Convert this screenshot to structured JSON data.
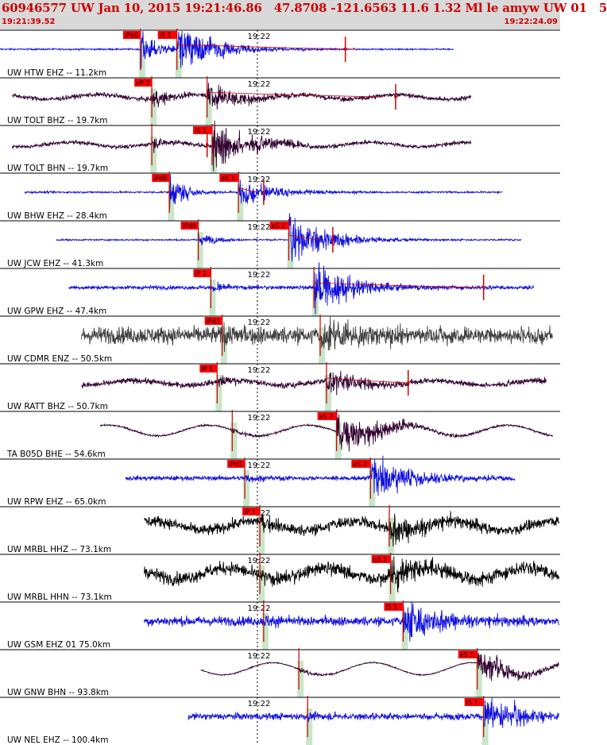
{
  "header": {
    "title": "60946577 UW Jan 10, 2015 19:21:46.86   47.8708 -121.6563 11.6 1.32 Ml le amyw UW 01   5",
    "time_start": "19:21:39.52",
    "time_end": "19:22:24.09"
  },
  "colors": {
    "header_bg": "#d9d9d9",
    "title_text": "#cc0000",
    "pick_box": "#ff0000",
    "pick_window": "#c8e6c8",
    "trace_blue": "#1010e0",
    "trace_purple": "#300030",
    "trace_gray": "#404040",
    "trace_black": "#000000"
  },
  "chart_data": {
    "type": "line",
    "title": "60946577 UW Jan 10, 2015 19:21:46.86   47.8708 -121.6563 11.6 1.32 Ml le amyw UW 01   5",
    "x_range": [
      "19:21:39.52",
      "19:22:24.09"
    ],
    "x_tick_label": "19:22",
    "origin_time": "19:21:46.86",
    "series": [
      {
        "name": "UW HTW EHZ -- 11.2km",
        "color": "blue",
        "start": "19:21:39.52",
        "end": "19:22:15.6",
        "p_label": "iPd0",
        "p_arrival": "19:21:50.7",
        "s_label": "iS 1",
        "s_arrival": "19:21:53.6",
        "amp_time": "19:22:07.0",
        "coda_end": "19:22:08.0",
        "noise": 0.04,
        "drift": 0,
        "p_amp": 0.9,
        "s_amp": 1.0
      },
      {
        "name": "UW TOLT BHZ -- 19.7km",
        "color": "purple",
        "start": "19:21:40.5",
        "end": "19:22:17.0",
        "p_label": "eP 2",
        "p_arrival": "19:21:51.6",
        "s_label": "",
        "s_arrival": "19:21:56.0",
        "amp_time": "19:22:11.0",
        "coda_end": "19:22:10.0",
        "noise": 0.12,
        "drift": 0.15,
        "p_amp": 0.6,
        "s_amp": 0.6
      },
      {
        "name": "UW TOLT BHN -- 19.7km",
        "color": "purple",
        "start": "19:21:40.5",
        "end": "19:22:17.0",
        "p_label": "",
        "p_arrival": "19:21:51.6",
        "s_label": "iS 1",
        "s_arrival": "19:21:56.4",
        "amp_time": "19:21:56.0",
        "coda_end": "",
        "noise": 0.1,
        "drift": 0.15,
        "p_amp": 0.4,
        "s_amp": 1.0
      },
      {
        "name": "UW BHW EHZ -- 28.4km",
        "color": "blue",
        "start": "19:21:41.5",
        "end": "19:22:19.5",
        "p_label": "iPd0",
        "p_arrival": "19:21:53.0",
        "s_label": "eS 2",
        "s_arrival": "19:21:58.5",
        "amp_time": "19:22:00.5",
        "coda_end": "19:22:00.0",
        "noise": 0.05,
        "drift": 0,
        "p_amp": 0.9,
        "s_amp": 0.5
      },
      {
        "name": "UW JCW EHZ -- 41.3km",
        "color": "blue",
        "start": "19:21:44.0",
        "end": "19:22:21.0",
        "p_label": "iPd0",
        "p_arrival": "19:21:55.3",
        "s_label": "eS 2",
        "s_arrival": "19:22:02.5",
        "amp_time": "19:22:06.0",
        "coda_end": "19:22:05.0",
        "noise": 0.04,
        "drift": 0,
        "p_amp": 0.4,
        "s_amp": 1.0
      },
      {
        "name": "UW GPW EHZ -- 47.4km",
        "color": "blue",
        "start": "19:21:45.0",
        "end": "19:22:22.0",
        "p_label": "iP 1",
        "p_arrival": "19:21:56.3",
        "s_label": "",
        "s_arrival": "19:22:04.5",
        "amp_time": "19:22:18.0",
        "coda_end": "19:22:18.0",
        "noise": 0.1,
        "drift": 0,
        "p_amp": 0.4,
        "s_amp": 1.0
      },
      {
        "name": "UW CDMR ENZ -- 50.5km",
        "color": "gray",
        "start": "19:21:46.0",
        "end": "19:22:23.5",
        "p_label": "iPd1",
        "p_arrival": "19:21:57.2",
        "s_label": "",
        "s_arrival": "19:22:05.0",
        "amp_time": "",
        "coda_end": "",
        "noise": 0.45,
        "drift": 0,
        "p_amp": 0.7,
        "s_amp": 0.7
      },
      {
        "name": "UW RATT BHZ -- 50.7km",
        "color": "purple",
        "start": "19:21:46.0",
        "end": "19:22:23.0",
        "p_label": "iP 1",
        "p_arrival": "19:21:56.8",
        "s_label": "",
        "s_arrival": "19:22:05.5",
        "amp_time": "19:22:12.0",
        "coda_end": "19:22:12.0",
        "noise": 0.15,
        "drift": 0.15,
        "p_amp": 0.4,
        "s_amp": 0.55
      },
      {
        "name": "TA B05D BHE -- 54.6km",
        "color": "purple",
        "start": "19:21:47.5",
        "end": "19:22:23.5",
        "p_label": "",
        "p_arrival": "19:21:58.0",
        "s_label": "eS 2",
        "s_arrival": "19:22:06.3",
        "amp_time": "",
        "coda_end": "",
        "noise": 0.05,
        "drift": 0.35,
        "p_amp": 0.2,
        "s_amp": 0.9
      },
      {
        "name": "UW RPW EHZ -- 65.0km",
        "color": "blue",
        "start": "19:21:49.5",
        "end": "19:22:20.5",
        "p_label": "iPd1",
        "p_arrival": "19:21:59.0",
        "s_label": "eS 2",
        "s_arrival": "19:22:09.0",
        "amp_time": "",
        "coda_end": "",
        "noise": 0.12,
        "drift": 0,
        "p_amp": 0.3,
        "s_amp": 0.9
      },
      {
        "name": "UW MRBL HHZ -- 73.1km",
        "color": "black",
        "start": "19:21:51.0",
        "end": "19:22:24.0",
        "p_label": "iP 1",
        "p_arrival": "19:22:00.2",
        "s_label": "",
        "s_arrival": "19:22:10.5",
        "amp_time": "",
        "coda_end": "",
        "noise": 0.3,
        "drift": 0.3,
        "p_amp": 0.5,
        "s_amp": 0.6
      },
      {
        "name": "UW MRBL HHN -- 73.1km",
        "color": "black",
        "start": "19:21:51.0",
        "end": "19:22:24.0",
        "p_label": "",
        "p_arrival": "19:22:00.2",
        "s_label": "eS 2",
        "s_arrival": "19:22:10.6",
        "amp_time": "",
        "coda_end": "",
        "noise": 0.35,
        "drift": 0.35,
        "p_amp": 0.4,
        "s_amp": 0.7
      },
      {
        "name": "UW GSM EHZ 01 75.0km",
        "color": "blue",
        "start": "19:21:51.0",
        "end": "19:22:24.0",
        "p_label": "",
        "p_arrival": "19:22:00.5",
        "s_label": "iS 1",
        "s_arrival": "19:22:11.6",
        "amp_time": "",
        "coda_end": "",
        "noise": 0.25,
        "drift": 0,
        "p_amp": 0.3,
        "s_amp": 0.9
      },
      {
        "name": "UW GNW BHN -- 93.8km",
        "color": "purple",
        "start": "19:21:55.5",
        "end": "19:22:24.0",
        "p_label": "",
        "p_arrival": "19:22:03.3",
        "s_label": "eS 1",
        "s_arrival": "19:22:17.5",
        "amp_time": "",
        "coda_end": "",
        "noise": 0.03,
        "drift": 0.4,
        "p_amp": 0.2,
        "s_amp": 0.6
      },
      {
        "name": "UW NEL EHZ -- 100.4km",
        "color": "blue",
        "start": "19:21:54.5",
        "end": "19:22:24.0",
        "p_label": "",
        "p_arrival": "19:22:04.0",
        "s_label": "iS 1",
        "s_arrival": "19:22:18.0",
        "amp_time": "",
        "coda_end": "",
        "noise": 0.18,
        "drift": 0,
        "p_amp": 0.2,
        "s_amp": 0.9
      }
    ]
  }
}
